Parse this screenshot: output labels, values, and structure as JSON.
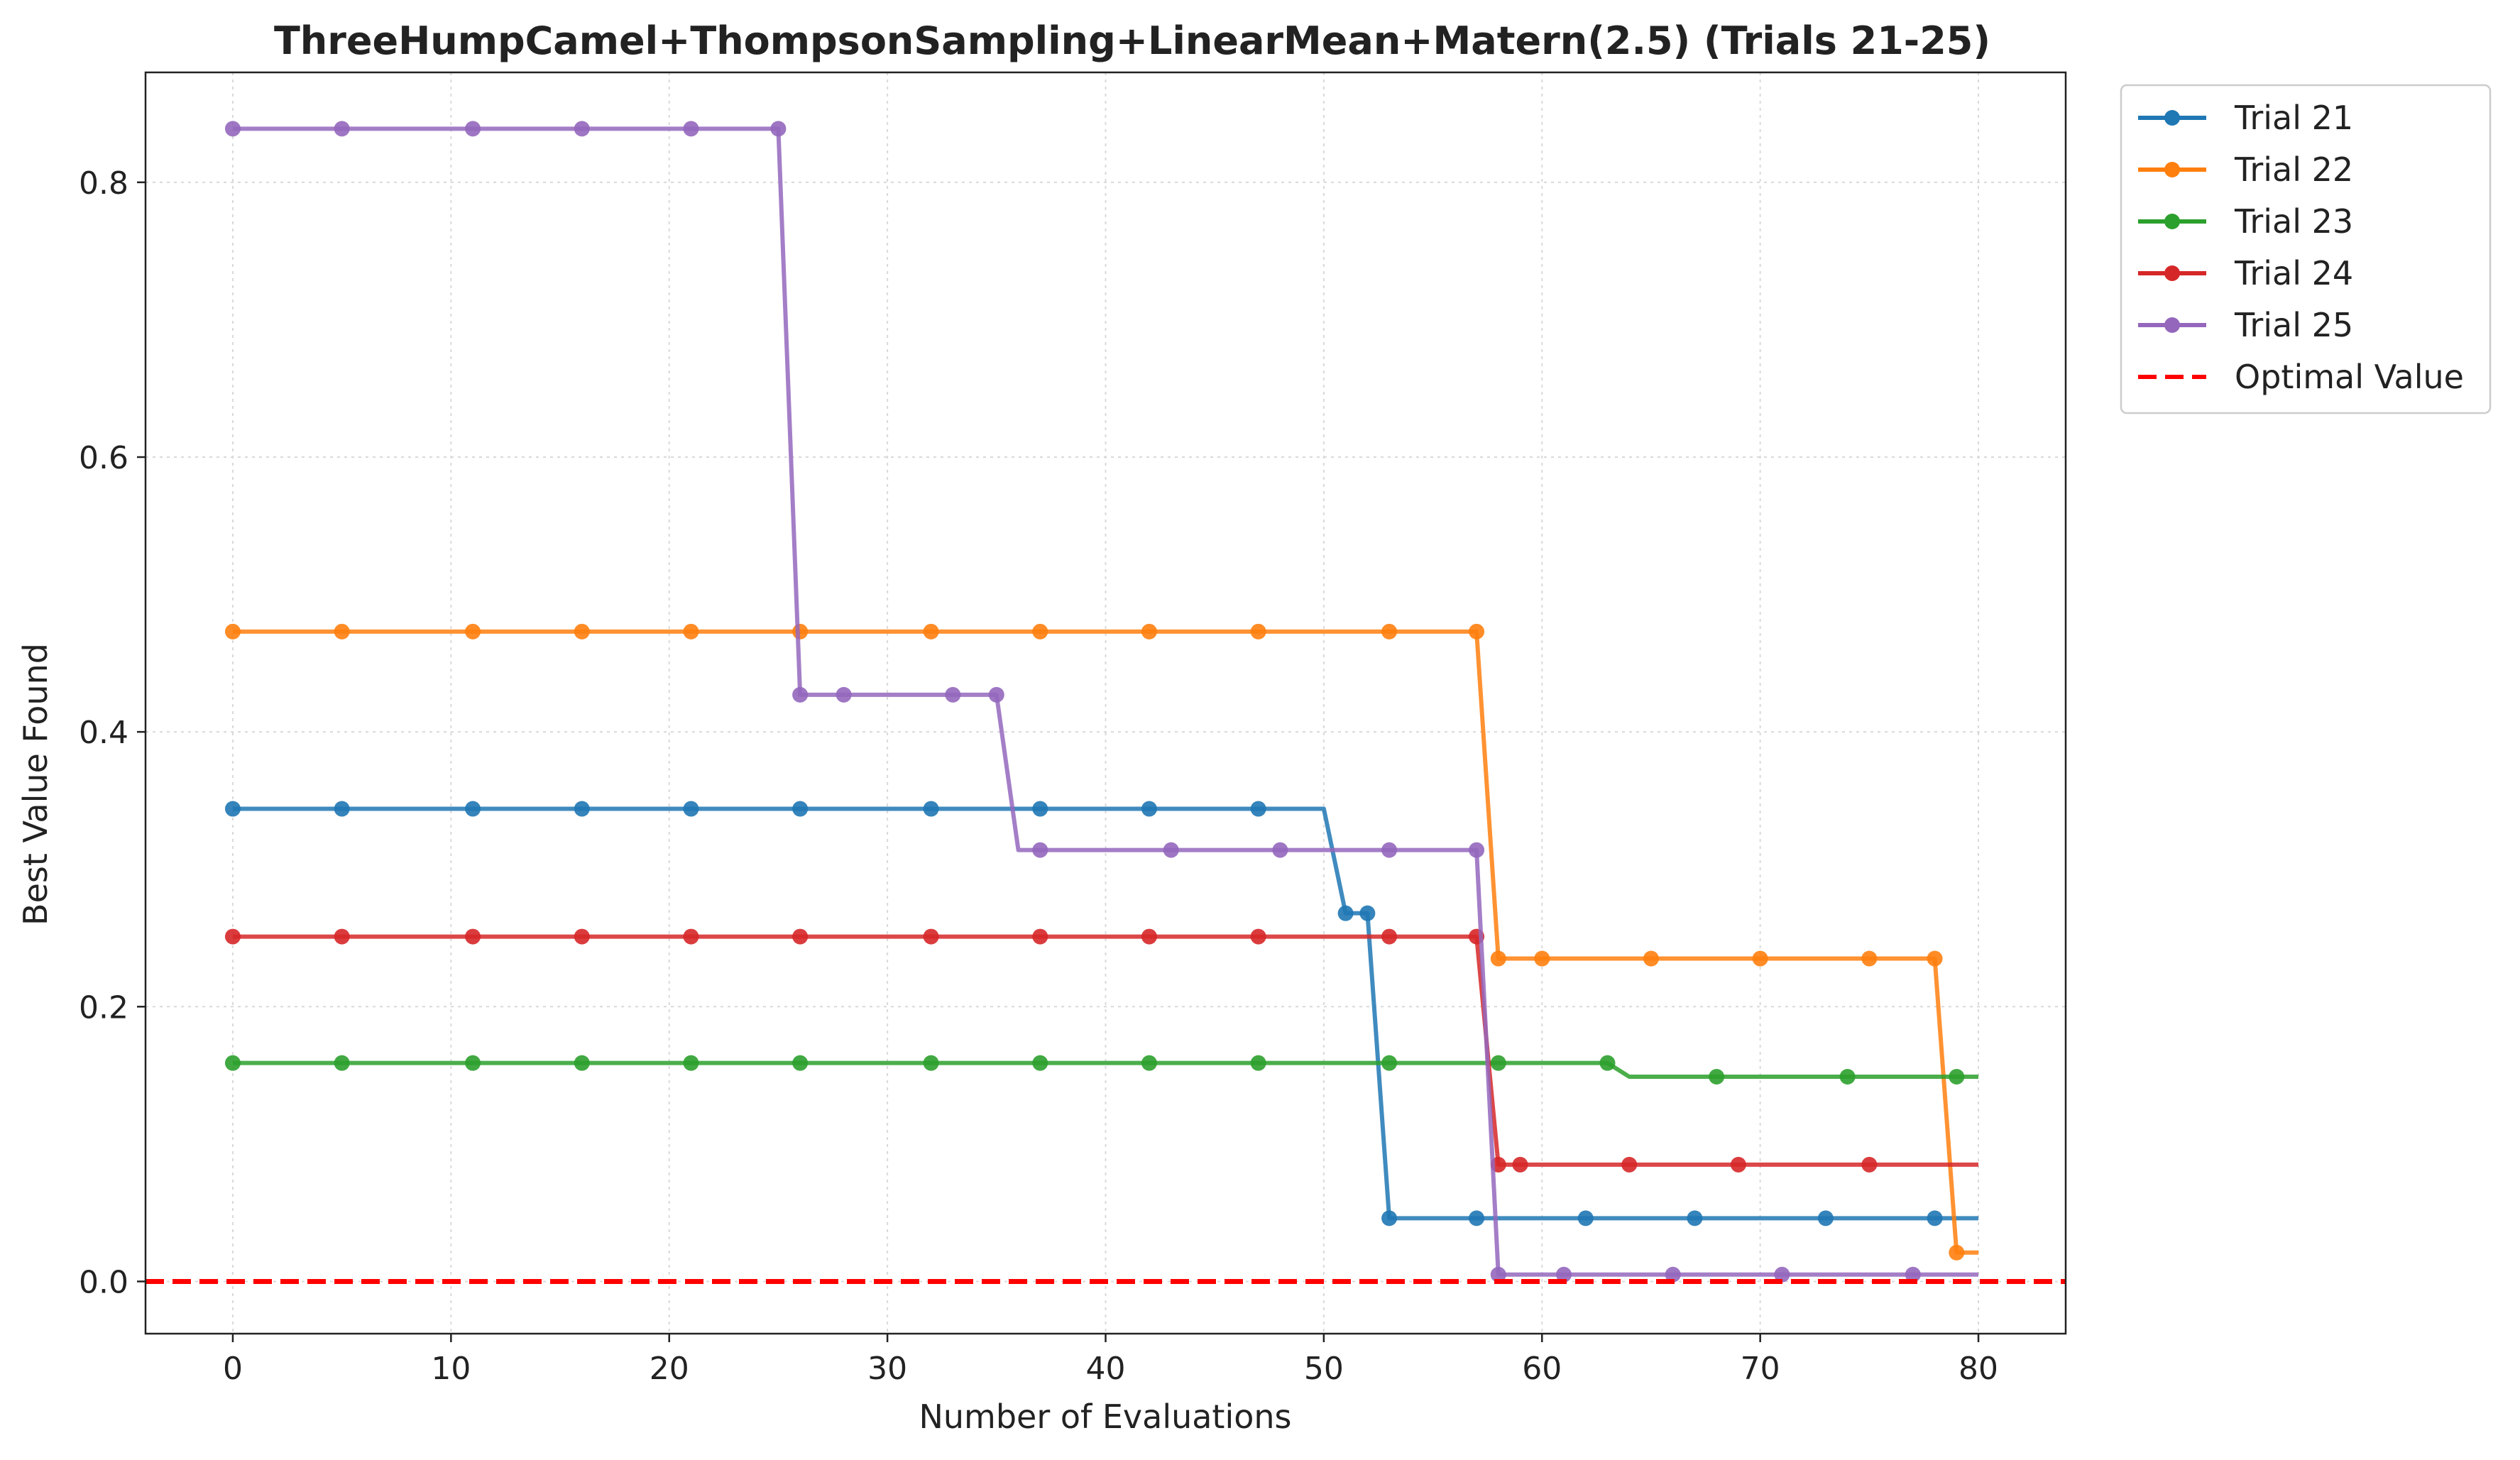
{
  "chart_data": {
    "type": "line",
    "title": "ThreeHumpCamel+ThompsonSampling+LinearMean+Matern(2.5) (Trials 21-25)",
    "xlabel": "Number of Evaluations",
    "ylabel": "Best Value Found",
    "xlim": [
      -4,
      84
    ],
    "ylim": [
      -0.038,
      0.88
    ],
    "xticks": [
      0,
      10,
      20,
      30,
      40,
      50,
      60,
      70,
      80
    ],
    "yticks": [
      0.0,
      0.2,
      0.4,
      0.6,
      0.8
    ],
    "xtick_labels": [
      "0",
      "10",
      "20",
      "30",
      "40",
      "50",
      "60",
      "70",
      "80"
    ],
    "ytick_labels": [
      "0.0",
      "0.2",
      "0.4",
      "0.6",
      "0.8"
    ],
    "grid": true,
    "legend_position": "outside-top-right",
    "series": [
      {
        "name": "Trial 21",
        "color": "#1f77b4",
        "x": [
          0,
          50,
          51,
          52,
          53,
          78,
          80
        ],
        "y": [
          0.344,
          0.344,
          0.268,
          0.268,
          0.046,
          0.046,
          0.046
        ],
        "marker_x": [
          0,
          5,
          11,
          16,
          21,
          26,
          32,
          37,
          42,
          47,
          51,
          52,
          53,
          57,
          62,
          67,
          73,
          78
        ]
      },
      {
        "name": "Trial 22",
        "color": "#ff7f0e",
        "x": [
          0,
          57,
          58,
          78,
          79,
          80
        ],
        "y": [
          0.473,
          0.473,
          0.235,
          0.235,
          0.021,
          0.021
        ],
        "marker_x": [
          0,
          5,
          11,
          16,
          21,
          26,
          32,
          37,
          42,
          47,
          53,
          57,
          58,
          60,
          65,
          70,
          75,
          78,
          79
        ]
      },
      {
        "name": "Trial 23",
        "color": "#2ca02c",
        "x": [
          0,
          63,
          64,
          80
        ],
        "y": [
          0.159,
          0.159,
          0.149,
          0.149
        ],
        "marker_x": [
          0,
          5,
          11,
          16,
          21,
          26,
          32,
          37,
          42,
          47,
          53,
          58,
          63,
          68,
          74,
          79
        ]
      },
      {
        "name": "Trial 24",
        "color": "#d62728",
        "x": [
          0,
          57,
          58,
          80
        ],
        "y": [
          0.251,
          0.251,
          0.085,
          0.085
        ],
        "marker_x": [
          0,
          5,
          11,
          16,
          21,
          26,
          32,
          37,
          42,
          47,
          53,
          57,
          58,
          59,
          64,
          69,
          75
        ]
      },
      {
        "name": "Trial 25",
        "color": "#9467bd",
        "x": [
          0,
          25,
          26,
          35,
          36,
          57,
          58,
          80
        ],
        "y": [
          0.839,
          0.839,
          0.427,
          0.427,
          0.314,
          0.314,
          0.005,
          0.005
        ],
        "marker_x": [
          0,
          5,
          11,
          16,
          21,
          25,
          26,
          28,
          33,
          35,
          37,
          43,
          48,
          53,
          57,
          58,
          61,
          66,
          71,
          77
        ]
      }
    ],
    "reference_line": {
      "name": "Optimal Value",
      "y": 0.0,
      "color": "#ff0000",
      "style": "dashed"
    }
  }
}
